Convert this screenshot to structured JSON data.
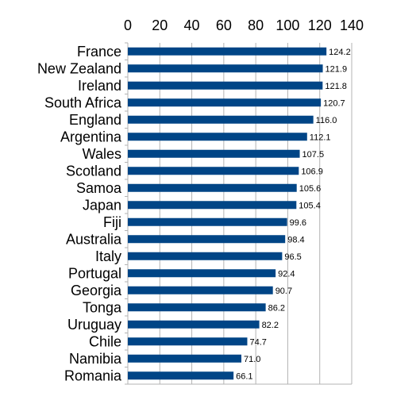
{
  "chart_data": {
    "type": "bar",
    "orientation": "horizontal",
    "categories": [
      "France",
      "New Zealand",
      "Ireland",
      "South Africa",
      "England",
      "Argentina",
      "Wales",
      "Scotland",
      "Samoa",
      "Japan",
      "Fiji",
      "Australia",
      "Italy",
      "Portugal",
      "Georgia",
      "Tonga",
      "Uruguay",
      "Chile",
      "Namibia",
      "Romania"
    ],
    "values": [
      124.2,
      121.9,
      121.8,
      120.7,
      116.0,
      112.1,
      107.5,
      106.9,
      105.6,
      105.4,
      99.6,
      98.4,
      96.5,
      92.4,
      90.7,
      86.2,
      82.2,
      74.7,
      71.0,
      66.1
    ],
    "data_labels": [
      "124.2",
      "121.9",
      "121.8",
      "120.7",
      "116.0",
      "112.1",
      "107.5",
      "106.9",
      "105.6",
      "105.4",
      "99.6",
      "98.4",
      "96.5",
      "92.4",
      "90.7",
      "86.2",
      "82.2",
      "74.7",
      "71.0",
      "66.1"
    ],
    "xlim": [
      0,
      140
    ],
    "x_ticks": [
      "0",
      "20",
      "40",
      "60",
      "80",
      "100",
      "120",
      "140"
    ],
    "x_axis_position": "top",
    "grid": true,
    "bar_color": "#004586",
    "title": "",
    "xlabel": "",
    "ylabel": ""
  }
}
